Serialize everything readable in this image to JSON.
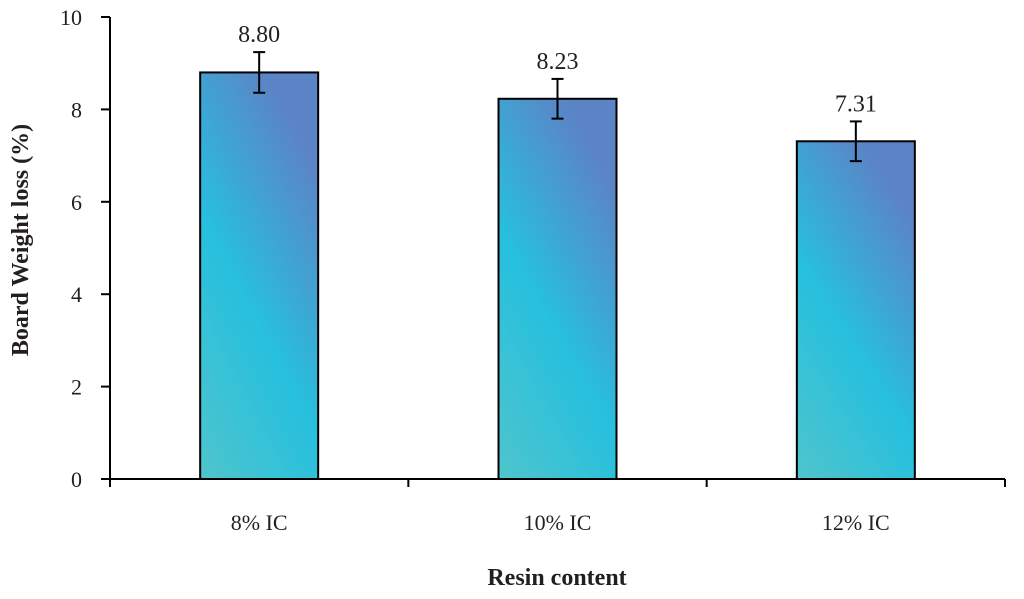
{
  "chart_data": {
    "type": "bar",
    "categories": [
      "8% IC",
      "10% IC",
      "12% IC"
    ],
    "values": [
      8.8,
      8.23,
      7.31
    ],
    "value_labels": [
      "8.80",
      "8.23",
      "7.31"
    ],
    "error": [
      0.44,
      0.43,
      0.43
    ],
    "xlabel": "Resin content",
    "ylabel": "Board Weight loss (%)",
    "ylim": [
      0,
      10
    ],
    "yticks": [
      0,
      2,
      4,
      6,
      8,
      10
    ],
    "grid": false,
    "legend": "none",
    "colors": {
      "bar_top": "#5b84c6",
      "bar_mid": "#27c0de",
      "bar_bottom": "#4fc4cc",
      "outline": "#000000",
      "text": "#231f20"
    }
  }
}
